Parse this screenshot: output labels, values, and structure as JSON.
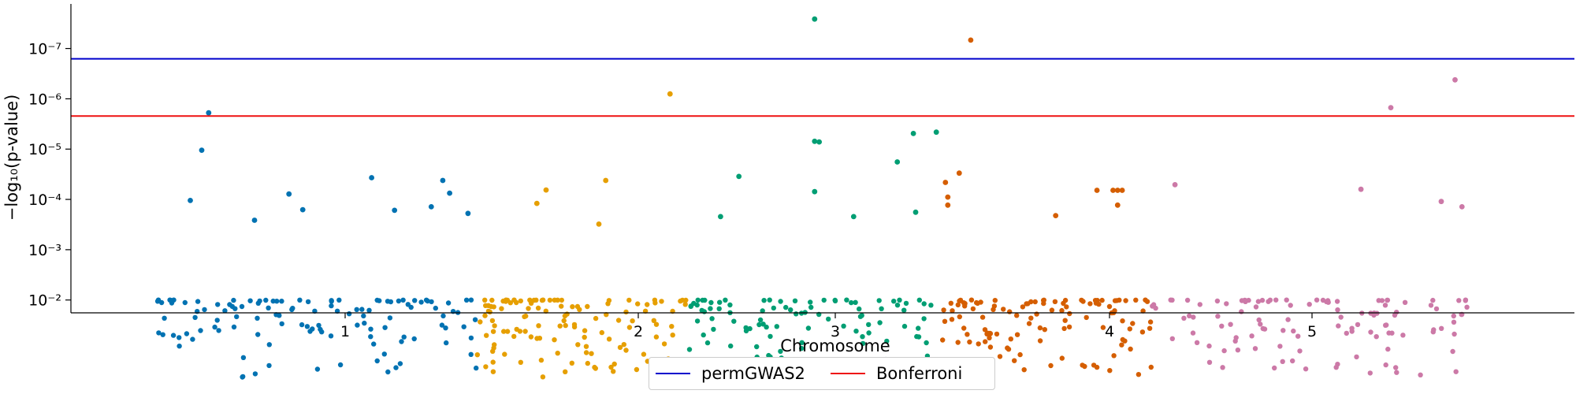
{
  "chart_data": {
    "type": "scatter",
    "xlabel": "Chromosome",
    "ylabel": "−log₁₀(p-value)",
    "y_scale": "log",
    "y_inverted": true,
    "ylim": [
      0.018,
      1.3e-08
    ],
    "y_ticks": [
      {
        "value": 1e-07,
        "label": "10⁻⁷"
      },
      {
        "value": 1e-06,
        "label": "10⁻⁶"
      },
      {
        "value": 1e-05,
        "label": "10⁻⁵"
      },
      {
        "value": 0.0001,
        "label": "10⁻⁴"
      },
      {
        "value": 0.001,
        "label": "10⁻³"
      },
      {
        "value": 0.01,
        "label": "10⁻²"
      }
    ],
    "x_ticks": [
      "1",
      "2",
      "3",
      "4",
      "5"
    ],
    "grid": false,
    "legend_position": "bottom-center",
    "threshold_lines": [
      {
        "name": "permGWAS2",
        "value": 1.6e-07,
        "color": "#0000cc"
      },
      {
        "name": "Bonferroni",
        "value": 2.2e-06,
        "color": "#ee1111"
      }
    ],
    "series": [
      {
        "chromosome": "1",
        "color": "#0072b2",
        "highlights": [
          [
            0.25,
            1.9e-06
          ],
          [
            0.22,
            1.05e-05
          ],
          [
            0.6,
            7.8e-05
          ],
          [
            0.45,
            0.00026
          ],
          [
            0.17,
            0.000105
          ],
          [
            0.96,
            3.7e-05
          ],
          [
            1.27,
            4.2e-05
          ],
          [
            1.3,
            7.5e-05
          ],
          [
            1.22,
            0.00014
          ],
          [
            1.38,
            0.00019
          ],
          [
            1.06,
            0.000165
          ],
          [
            0.66,
            0.00016
          ]
        ],
        "n": 120,
        "x_range": [
          0.0,
          1.42
        ],
        "seed": 11
      },
      {
        "chromosome": "2",
        "color": "#e69f00",
        "highlights": [
          [
            2.26,
            8e-07
          ],
          [
            1.72,
            6.5e-05
          ],
          [
            1.98,
            4.2e-05
          ],
          [
            1.68,
            0.00012
          ],
          [
            1.95,
            0.00031
          ]
        ],
        "n": 125,
        "x_range": [
          1.42,
          2.33
        ],
        "seed": 23
      },
      {
        "chromosome": "3",
        "color": "#009e73",
        "highlights": [
          [
            2.89,
            2.6e-08
          ],
          [
            2.91,
            7.2e-06
          ],
          [
            2.89,
            7e-06
          ],
          [
            3.32,
            4.9e-06
          ],
          [
            3.42,
            4.6e-06
          ],
          [
            3.25,
            1.8e-05
          ],
          [
            2.56,
            3.5e-05
          ],
          [
            2.89,
            7e-05
          ],
          [
            3.33,
            0.00018
          ],
          [
            3.06,
            0.00022
          ],
          [
            2.48,
            0.00022
          ]
        ],
        "n": 110,
        "x_range": [
          2.33,
          3.44
        ],
        "seed": 37
      },
      {
        "chromosome": "4",
        "color": "#d55e00",
        "highlights": [
          [
            3.57,
            6.8e-08
          ],
          [
            3.52,
            3e-05
          ],
          [
            3.46,
            4.6e-05
          ],
          [
            3.47,
            9e-05
          ],
          [
            3.47,
            0.00013
          ],
          [
            4.21,
            6.6e-05
          ],
          [
            4.19,
            6.6e-05
          ],
          [
            4.23,
            6.6e-05
          ],
          [
            3.94,
            0.00021
          ],
          [
            4.12,
            6.6e-05
          ],
          [
            4.21,
            0.00013
          ]
        ],
        "n": 115,
        "x_range": [
          3.44,
          4.36
        ],
        "seed": 53
      },
      {
        "chromosome": "5",
        "color": "#cc79a7",
        "highlights": [
          [
            5.68,
            4.2e-07
          ],
          [
            5.4,
            1.5e-06
          ],
          [
            4.46,
            5.1e-05
          ],
          [
            5.27,
            6.3e-05
          ],
          [
            5.62,
            0.00011
          ],
          [
            5.71,
            0.00014
          ]
        ],
        "n": 115,
        "x_range": [
          4.36,
          5.75
        ],
        "seed": 71
      }
    ]
  },
  "legend": {
    "items": [
      {
        "label": "permGWAS2",
        "color": "#0000cc"
      },
      {
        "label": "Bonferroni",
        "color": "#ee1111"
      }
    ]
  }
}
